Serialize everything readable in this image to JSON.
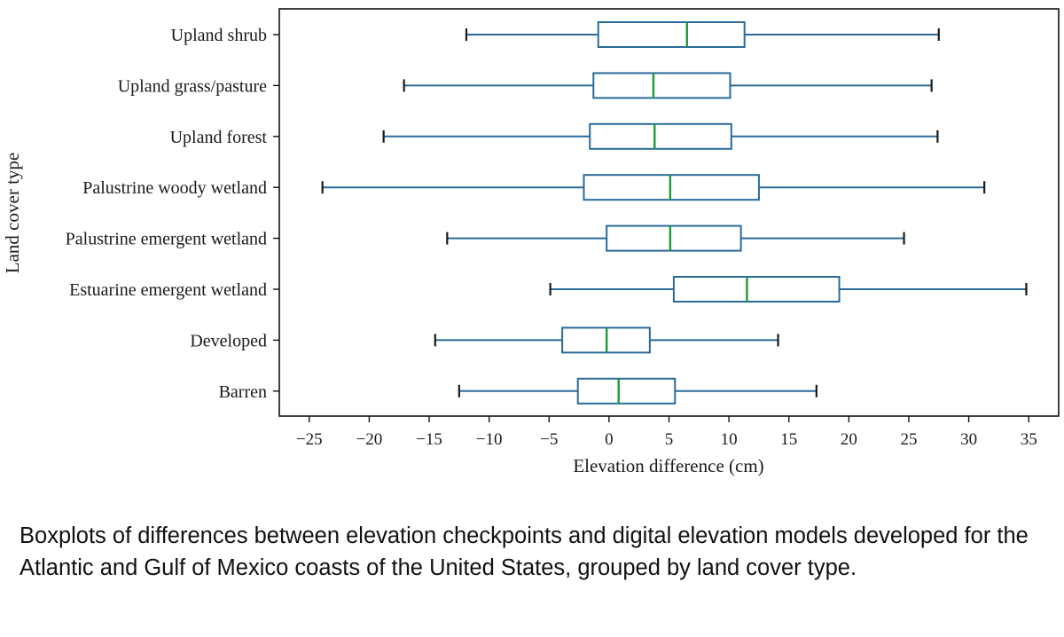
{
  "chart_data": {
    "type": "boxplot",
    "orientation": "horizontal",
    "xlabel": "Elevation difference (cm)",
    "ylabel": "Land cover type",
    "xlim": [
      -27.5,
      37.5
    ],
    "xticks": [
      -25,
      -20,
      -15,
      -10,
      -5,
      0,
      5,
      10,
      15,
      20,
      25,
      30,
      35
    ],
    "tick_labels": [
      "−25",
      "−20",
      "−15",
      "−10",
      "−5",
      "0",
      "5",
      "10",
      "15",
      "20",
      "25",
      "30",
      "35"
    ],
    "grid": false,
    "categories": [
      "Upland shrub",
      "Upland grass/pasture",
      "Upland forest",
      "Palustrine woody wetland",
      "Palustrine emergent wetland",
      "Estuarine emergent wetland",
      "Developed",
      "Barren"
    ],
    "boxes": [
      {
        "whisker_low": -11.9,
        "q1": -0.9,
        "median": 6.5,
        "q3": 11.3,
        "whisker_high": 27.5
      },
      {
        "whisker_low": -17.1,
        "q1": -1.3,
        "median": 3.7,
        "q3": 10.1,
        "whisker_high": 26.9
      },
      {
        "whisker_low": -18.8,
        "q1": -1.6,
        "median": 3.8,
        "q3": 10.2,
        "whisker_high": 27.4
      },
      {
        "whisker_low": -23.9,
        "q1": -2.1,
        "median": 5.1,
        "q3": 12.5,
        "whisker_high": 31.3
      },
      {
        "whisker_low": -13.5,
        "q1": -0.2,
        "median": 5.1,
        "q3": 11.0,
        "whisker_high": 24.6
      },
      {
        "whisker_low": -4.9,
        "q1": 5.4,
        "median": 11.5,
        "q3": 19.2,
        "whisker_high": 34.8
      },
      {
        "whisker_low": -14.5,
        "q1": -3.9,
        "median": -0.2,
        "q3": 3.4,
        "whisker_high": 14.1
      },
      {
        "whisker_low": -12.5,
        "q1": -2.6,
        "median": 0.8,
        "q3": 5.5,
        "whisker_high": 17.3
      }
    ],
    "colors": {
      "box": "#2a6a9a",
      "median": "#1a9a3a",
      "axis": "#111111"
    }
  },
  "caption": "Boxplots of differences between elevation checkpoints and digital elevation models developed for the Atlantic and Gulf of Mexico coasts of the United States, grouped by land cover type."
}
